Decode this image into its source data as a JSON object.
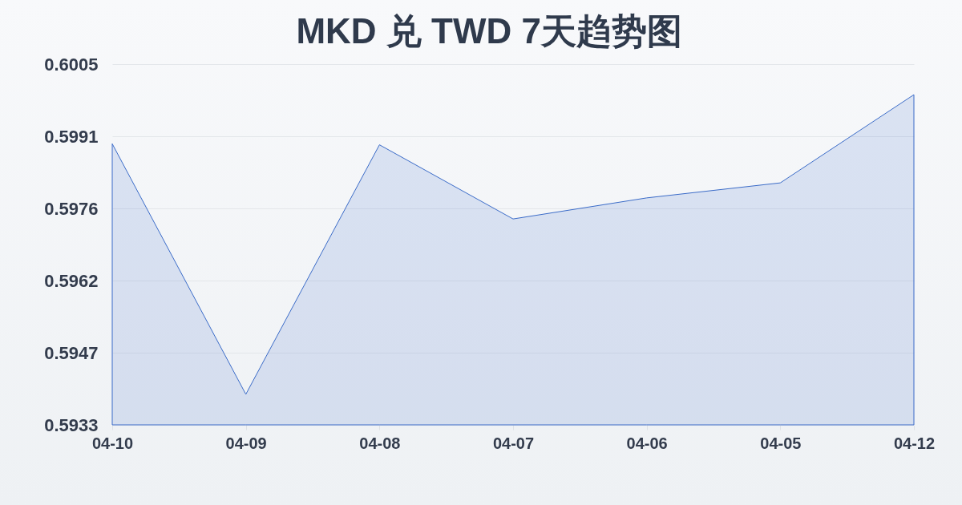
{
  "chart_data": {
    "type": "area",
    "title": "MKD 兑 TWD 7天趋势图",
    "categories": [
      "04-10",
      "04-09",
      "04-08",
      "04-07",
      "04-06",
      "04-05",
      "04-12"
    ],
    "values": [
      0.59891,
      0.59391,
      0.59889,
      0.59741,
      0.59783,
      0.59813,
      0.59989
    ],
    "color": "#3a6bc8",
    "ylim": [
      0.5933,
      0.6005
    ],
    "yticks": [
      0.5933,
      {
        "value": 0.59474,
        "label": "0.5947"
      },
      {
        "value": 0.59618,
        "label": "0.5962"
      },
      {
        "value": 0.59762,
        "label": "0.5976"
      },
      {
        "value": 0.59906,
        "label": "0.5991"
      },
      0.6005
    ],
    "grid": "y"
  }
}
